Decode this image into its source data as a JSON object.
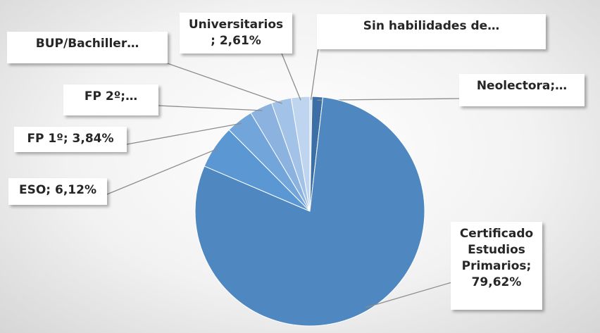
{
  "chart_data": {
    "type": "pie",
    "values": [
      0.31,
      1.5,
      79.62,
      6.12,
      3.84,
      3.2,
      2.8,
      2.61
    ],
    "value_labels": [
      "Sin habilidades de…",
      "Neolectora;…",
      "Certificado Estudios Primarios; 79,62%",
      "ESO; 6,12%",
      "FP 1º; 3,84%",
      "FP 2º;…",
      "BUP/Bachiller…",
      "Universitarios ; 2,61%"
    ],
    "colors": [
      "#d2e1f4",
      "#3b6fa6",
      "#4f88c0",
      "#5b97d2",
      "#72a5d9",
      "#8cb3e0",
      "#a3c2e7",
      "#bfd4ef"
    ]
  }
}
